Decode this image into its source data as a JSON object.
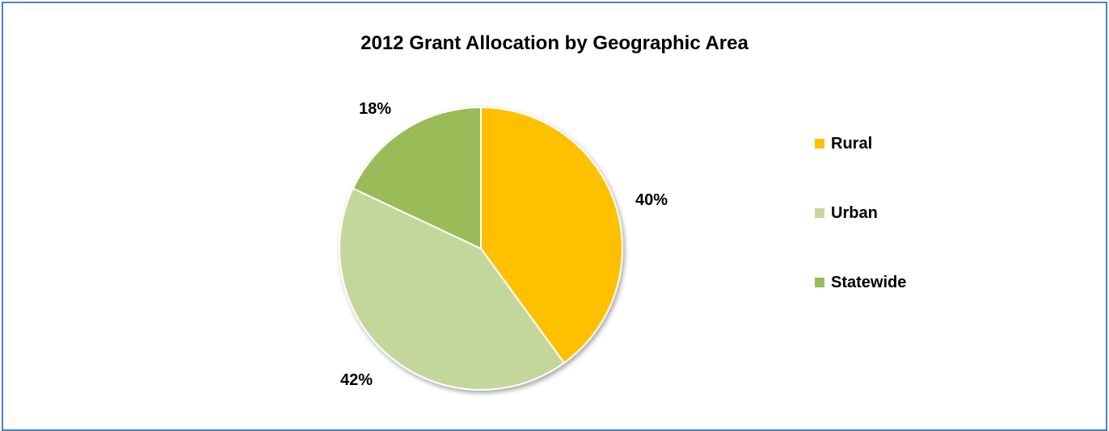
{
  "chart_data": {
    "type": "pie",
    "title": "2012 Grant Allocation by Geographic Area",
    "categories": [
      "Rural",
      "Urban",
      "Statewide"
    ],
    "values": [
      40,
      42,
      18
    ],
    "data_labels": [
      "40%",
      "42%",
      "18%"
    ],
    "colors": [
      "#ffc000",
      "#c4d79b",
      "#9bbb59"
    ],
    "legend_position": "right"
  }
}
